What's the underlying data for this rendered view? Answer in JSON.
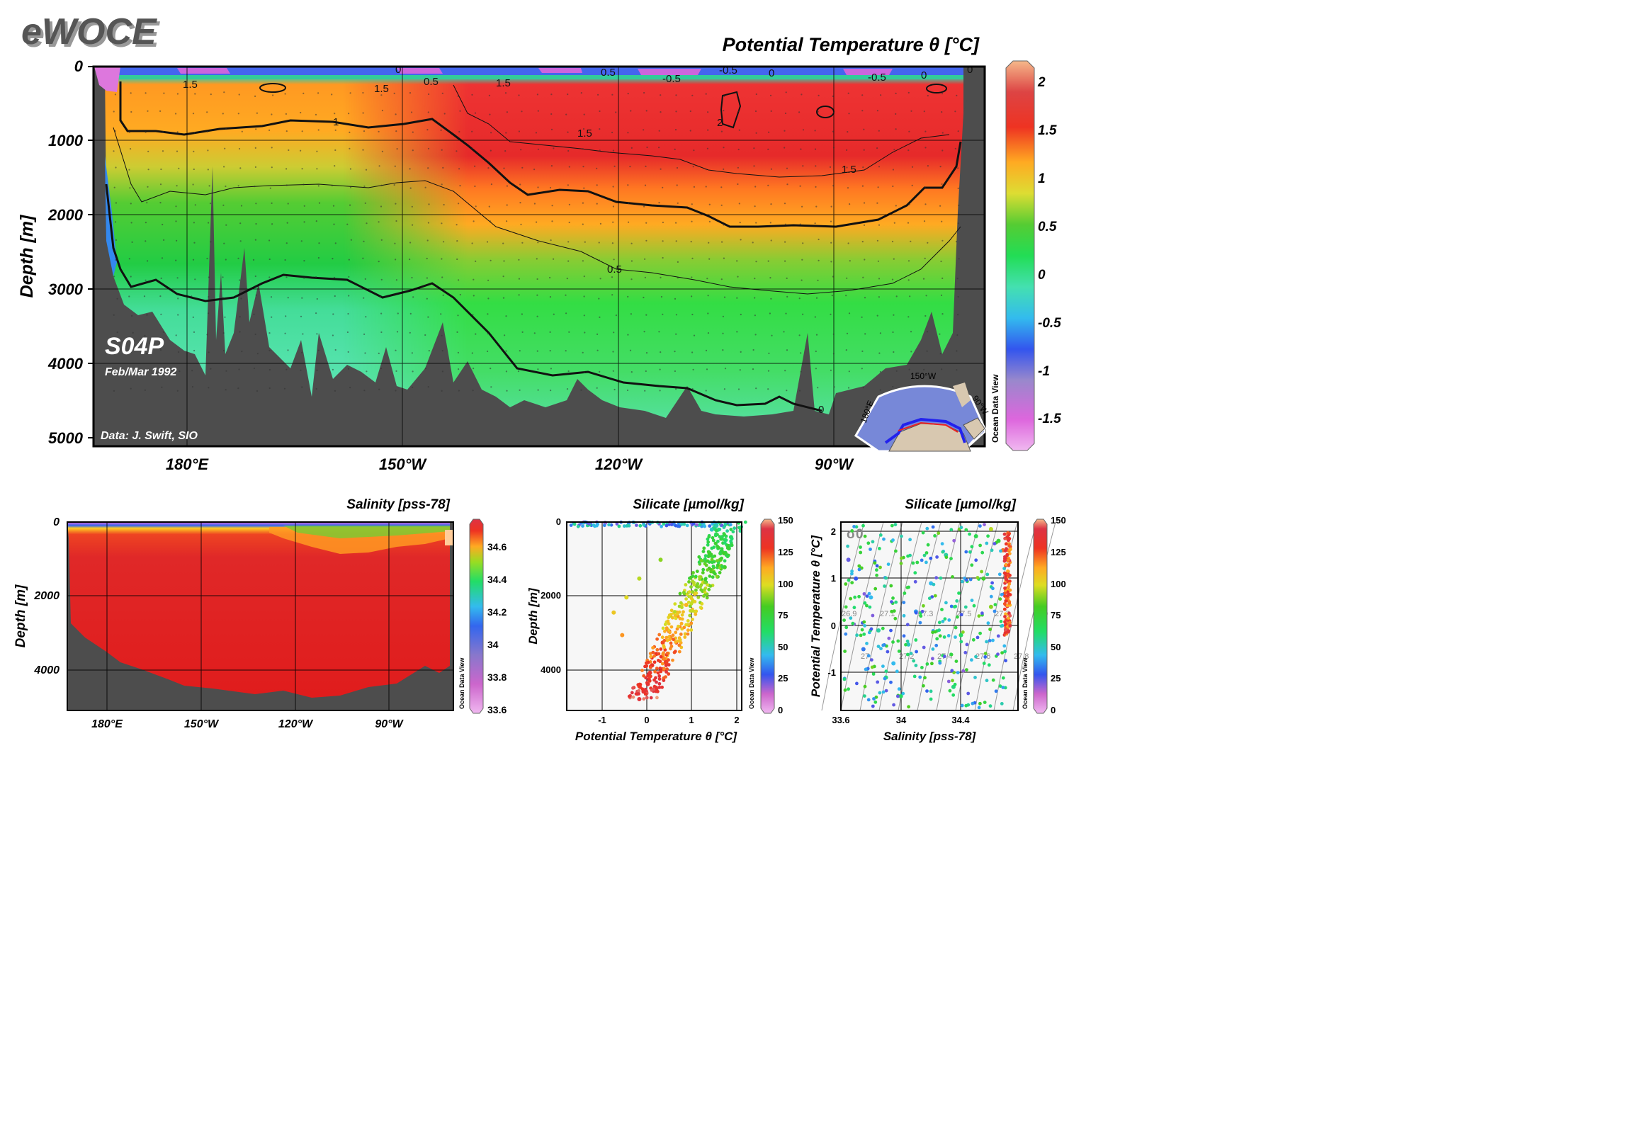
{
  "brand": "eWOCE",
  "colors": {
    "land": "#4d4d4d",
    "frame": "#000000",
    "panel_bg": "#f7f7f7",
    "contour": "#111111",
    "text": "#000000"
  },
  "main_panel": {
    "title": "Potential Temperature θ [°C]",
    "ylabel": "Depth [m]",
    "section_label": "S04P",
    "date_label": "Feb/Mar 1992",
    "credit": "Data: J. Swift, SIO",
    "map_labels": [
      "150°W",
      "180°E",
      "90°W"
    ],
    "watermark": "Ocean Data View",
    "watermark_small": "ODV"
  },
  "salinity_panel": {
    "title": "Salinity [pss-78]",
    "watermark": "Ocean Data View"
  },
  "silicate_depth_panel": {
    "title": "Silicate [µmol/kg]",
    "watermark": "Ocean Data View"
  },
  "silicate_ts_panel": {
    "title": "Silicate [µmol/kg]",
    "sigma_label": "σ0",
    "watermark": "Ocean Data View"
  },
  "chart_data": [
    {
      "type": "heatmap",
      "title": "Potential Temperature θ [°C]",
      "xlabel": "",
      "ylabel": "Depth [m]",
      "x_ticks": [
        "180°E",
        "150°W",
        "120°W",
        "90°W"
      ],
      "y_ticks": [
        0,
        1000,
        2000,
        3000,
        4000,
        5000
      ],
      "ylim": [
        5000,
        0
      ],
      "colorbar": {
        "ticks": [
          2,
          1.5,
          1,
          0.5,
          0,
          -0.5,
          -1,
          -1.5
        ],
        "range": [
          -1.8,
          2.2
        ]
      },
      "contour_labels": [
        "1.5",
        "1.5",
        "1.5",
        "1",
        "1.5",
        "1.5",
        "2",
        "0.5",
        "0",
        "0.5",
        "0",
        "-0.5",
        "0.5",
        "0",
        "-0.5",
        "-0.5",
        "0",
        "0"
      ],
      "profile": [
        {
          "lon": 170,
          "t1000": 1.1,
          "t2000": 0.65,
          "t3000": 0.3,
          "t4000": 0.2
        },
        {
          "lon": 180,
          "t1000": 1.2,
          "t2000": 0.7,
          "t3000": 0.35,
          "t4000": 0.2
        },
        {
          "lon": -150,
          "t1000": 1.2,
          "t2000": 0.75,
          "t3000": 0.35,
          "t4000": 0.25
        },
        {
          "lon": -120,
          "t1000": 1.7,
          "t2000": 1.05,
          "t3000": 0.55,
          "t4000": 0.35
        },
        {
          "lon": -90,
          "t1000": 1.8,
          "t2000": 1.1,
          "t3000": 0.55,
          "t4000": 0.4
        }
      ]
    },
    {
      "type": "heatmap",
      "title": "Salinity [pss-78]",
      "ylabel": "Depth [m]",
      "x_ticks": [
        "180°E",
        "150°W",
        "120°W",
        "90°W"
      ],
      "y_ticks": [
        0,
        2000,
        4000
      ],
      "colorbar": {
        "ticks": [
          34.6,
          34.4,
          34.2,
          34,
          33.8,
          33.6
        ],
        "range": [
          33.6,
          34.75
        ]
      },
      "surface_value": 34.1,
      "deep_value": 34.7
    },
    {
      "type": "scatter",
      "title": "Silicate [µmol/kg]",
      "xlabel": "Potential Temperature θ [°C]",
      "ylabel": "Depth [m]",
      "x_ticks": [
        -1,
        0,
        1,
        2
      ],
      "y_ticks": [
        0,
        2000,
        4000
      ],
      "xlim": [
        -1.9,
        2.2
      ],
      "ylim": [
        5000,
        0
      ],
      "colorbar": {
        "ticks": [
          150,
          125,
          100,
          75,
          50,
          25,
          0
        ],
        "range": [
          0,
          150
        ]
      },
      "points_theta_depth_si": [
        [
          -0.2,
          4700,
          138
        ],
        [
          -0.1,
          4500,
          135
        ],
        [
          0,
          4300,
          135
        ],
        [
          0.05,
          4000,
          132
        ],
        [
          0.1,
          3800,
          130
        ],
        [
          0.2,
          3500,
          128
        ],
        [
          0.35,
          3200,
          125
        ],
        [
          0.5,
          2900,
          120
        ],
        [
          0.7,
          2500,
          115
        ],
        [
          0.9,
          2200,
          110
        ],
        [
          1.1,
          1900,
          105
        ],
        [
          1.3,
          1600,
          100
        ],
        [
          1.5,
          1300,
          95
        ],
        [
          1.7,
          1000,
          85
        ],
        [
          1.9,
          700,
          75
        ],
        [
          1.95,
          400,
          65
        ],
        [
          1.5,
          200,
          50
        ],
        [
          0.5,
          50,
          30
        ],
        [
          -1,
          20,
          20
        ],
        [
          -1.5,
          10,
          15
        ],
        [
          -0.6,
          3000,
          115
        ],
        [
          -0.8,
          2400,
          105
        ],
        [
          -0.5,
          2000,
          100
        ],
        [
          -0.2,
          1500,
          95
        ],
        [
          0.3,
          1000,
          90
        ],
        [
          1.8,
          1200,
          80
        ]
      ]
    },
    {
      "type": "scatter",
      "title": "Silicate [µmol/kg]",
      "xlabel": "Salinity [pss-78]",
      "ylabel": "Potential Temperature θ [°C]",
      "x_ticks": [
        33.6,
        34,
        34.4
      ],
      "y_ticks": [
        -1,
        0,
        1,
        2
      ],
      "xlim": [
        33.6,
        34.78
      ],
      "ylim": [
        -1.9,
        2.1
      ],
      "colorbar": {
        "ticks": [
          150,
          125,
          100,
          75,
          50,
          25,
          0
        ],
        "range": [
          0,
          150
        ]
      },
      "sigma_isolines": [
        "26.9",
        "27",
        "27.1",
        "27.2",
        "27.3",
        "27.4",
        "27.5",
        "27.6",
        "27.7",
        "27.8",
        "27.9"
      ],
      "points_sal_theta_si": [
        [
          33.65,
          1.3,
          25
        ],
        [
          33.7,
          0.9,
          30
        ],
        [
          33.8,
          0.5,
          45
        ],
        [
          33.85,
          -0.2,
          55
        ],
        [
          33.9,
          -1.2,
          60
        ],
        [
          34.0,
          -1.6,
          65
        ],
        [
          34.05,
          -0.5,
          50
        ],
        [
          34.1,
          0.2,
          40
        ],
        [
          34.2,
          0.8,
          45
        ],
        [
          34.3,
          1.4,
          55
        ],
        [
          34.35,
          -1.4,
          60
        ],
        [
          34.4,
          -0.3,
          65
        ],
        [
          34.5,
          1.8,
          70
        ],
        [
          34.55,
          0.9,
          80
        ],
        [
          34.6,
          0.3,
          90
        ],
        [
          34.65,
          1.7,
          75
        ],
        [
          34.7,
          1.0,
          130
        ],
        [
          34.71,
          0.5,
          135
        ],
        [
          34.72,
          0.0,
          138
        ],
        [
          34.7,
          -0.2,
          140
        ],
        [
          34.68,
          1.5,
          120
        ],
        [
          34.6,
          1.95,
          95
        ],
        [
          33.75,
          -0.6,
          35
        ],
        [
          33.95,
          -0.9,
          45
        ]
      ]
    }
  ]
}
